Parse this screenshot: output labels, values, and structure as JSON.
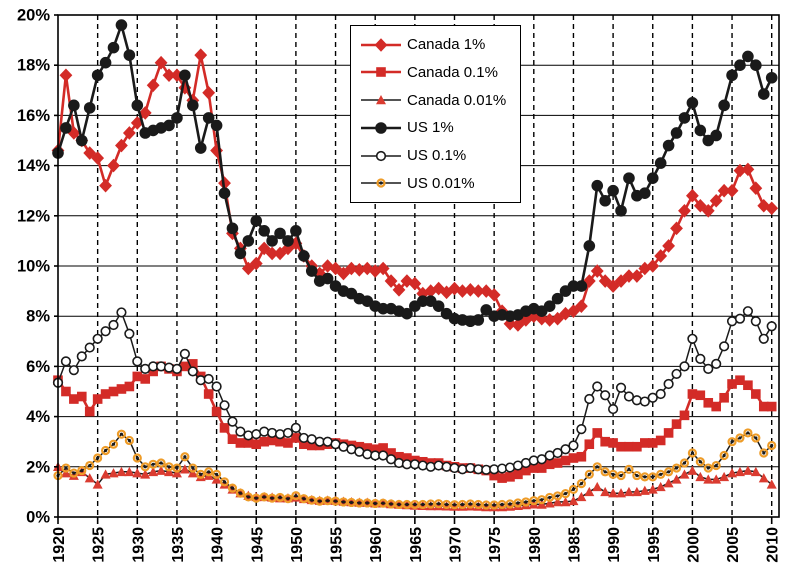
{
  "figure": {
    "title": "",
    "y_axis": {
      "tick_labels": [
        "0%",
        "2%",
        "4%",
        "6%",
        "8%",
        "10%",
        "12%",
        "14%",
        "16%",
        "18%",
        "20%"
      ],
      "min": 0,
      "max": 20,
      "step": 2
    },
    "x_axis": {
      "tick_labels": [
        "1920",
        "1925",
        "1930",
        "1935",
        "1940",
        "1945",
        "1950",
        "1955",
        "1960",
        "1965",
        "1970",
        "1975",
        "1980",
        "1985",
        "1990",
        "1995",
        "2000",
        "2005",
        "2010"
      ],
      "min": 1920,
      "max": 2010,
      "step": 5
    },
    "colors": {
      "red": "#d32b27",
      "black": "#1a1a1a",
      "orange": "#ee9c28",
      "grid": "#000000",
      "background": "#ffffff"
    }
  },
  "chart_data": {
    "type": "line",
    "title": "",
    "xlabel": "",
    "ylabel": "",
    "ylim": [
      0,
      20
    ],
    "xlim": [
      1920,
      2010
    ],
    "grid": {
      "horizontal": "solid",
      "vertical": "dashed"
    },
    "legend_position": "top-center",
    "x_start": 1920,
    "x_step": 1,
    "series": [
      {
        "name": "Canada 1%",
        "line_color": "#d32b27",
        "line_width": 2.6,
        "marker": "diamond",
        "marker_color": "#d32b27",
        "marker_size": 6.4,
        "values": [
          14.6,
          17.6,
          15.3,
          15.0,
          14.5,
          14.3,
          13.2,
          14.0,
          14.8,
          15.3,
          15.7,
          16.1,
          17.2,
          18.1,
          17.6,
          17.6,
          17.1,
          16.6,
          18.4,
          16.9,
          14.6,
          13.3,
          11.3,
          10.7,
          9.9,
          10.1,
          10.7,
          10.5,
          10.5,
          10.7,
          10.9,
          10.4,
          10.0,
          9.7,
          10.0,
          9.9,
          9.7,
          9.9,
          9.85,
          9.9,
          9.8,
          9.9,
          9.4,
          9.05,
          9.4,
          9.3,
          8.9,
          9.0,
          9.1,
          8.95,
          9.1,
          9.0,
          9.05,
          9.0,
          9.0,
          8.85,
          8.2,
          7.7,
          7.65,
          7.85,
          8.0,
          7.9,
          7.85,
          7.9,
          8.1,
          8.2,
          8.4,
          9.4,
          9.8,
          9.4,
          9.2,
          9.4,
          9.6,
          9.6,
          9.9,
          10.0,
          10.4,
          10.8,
          11.5,
          12.2,
          12.8,
          12.4,
          12.2,
          12.6,
          13.0,
          13.0,
          13.8,
          13.85,
          13.1,
          12.4,
          12.3
        ]
      },
      {
        "name": "Canada 0.1%",
        "line_color": "#d32b27",
        "line_width": 2.6,
        "marker": "square",
        "marker_color": "#d32b27",
        "marker_size": 4.8,
        "values": [
          5.45,
          5.0,
          4.7,
          4.8,
          4.2,
          4.7,
          4.9,
          5.0,
          5.1,
          5.2,
          5.6,
          5.5,
          5.8,
          6.0,
          5.9,
          5.8,
          6.0,
          6.1,
          5.6,
          4.9,
          4.2,
          3.55,
          3.1,
          2.95,
          2.95,
          2.9,
          3.0,
          3.05,
          3.0,
          2.95,
          3.15,
          2.9,
          2.85,
          2.85,
          2.9,
          2.95,
          2.9,
          2.85,
          2.8,
          2.75,
          2.7,
          2.75,
          2.55,
          2.4,
          2.35,
          2.25,
          2.2,
          2.15,
          2.15,
          2.05,
          2.0,
          1.95,
          1.95,
          1.9,
          1.85,
          1.65,
          1.55,
          1.6,
          1.7,
          1.85,
          1.95,
          1.95,
          2.1,
          2.15,
          2.25,
          2.35,
          2.4,
          2.9,
          3.35,
          3.0,
          2.95,
          2.8,
          2.8,
          2.8,
          2.95,
          2.95,
          3.05,
          3.35,
          3.7,
          4.05,
          4.9,
          4.85,
          4.55,
          4.4,
          4.75,
          5.3,
          5.45,
          5.25,
          4.9,
          4.4,
          4.4
        ]
      },
      {
        "name": "Canada 0.01%",
        "line_color": "#1a1a1a",
        "line_width": 1.5,
        "marker": "triangle",
        "marker_color": "#da3b30",
        "marker_size": 5.0,
        "values": [
          2.0,
          1.75,
          1.65,
          1.8,
          1.55,
          1.3,
          1.7,
          1.75,
          1.8,
          1.8,
          1.75,
          1.7,
          1.8,
          1.85,
          1.8,
          1.75,
          1.9,
          1.75,
          1.6,
          1.65,
          1.5,
          1.3,
          1.1,
          0.95,
          0.85,
          0.8,
          0.8,
          0.78,
          0.75,
          0.75,
          0.78,
          0.72,
          0.68,
          0.65,
          0.66,
          0.65,
          0.62,
          0.6,
          0.58,
          0.58,
          0.55,
          0.55,
          0.52,
          0.5,
          0.48,
          0.46,
          0.45,
          0.44,
          0.44,
          0.43,
          0.42,
          0.42,
          0.43,
          0.42,
          0.4,
          0.4,
          0.4,
          0.42,
          0.45,
          0.48,
          0.51,
          0.5,
          0.55,
          0.6,
          0.6,
          0.64,
          0.8,
          1.0,
          1.2,
          1.0,
          0.95,
          0.95,
          1.0,
          1.0,
          1.05,
          1.1,
          1.2,
          1.35,
          1.5,
          1.7,
          1.85,
          1.6,
          1.5,
          1.5,
          1.6,
          1.75,
          1.8,
          1.85,
          1.8,
          1.55,
          1.3
        ]
      },
      {
        "name": "US 1%",
        "line_color": "#1a1a1a",
        "line_width": 2.6,
        "marker": "circle",
        "marker_color": "#1a1a1a",
        "marker_size": 5.8,
        "values": [
          14.5,
          15.5,
          16.4,
          15.0,
          16.3,
          17.6,
          18.1,
          18.7,
          19.6,
          18.4,
          16.4,
          15.3,
          15.4,
          15.5,
          15.6,
          15.9,
          17.6,
          16.4,
          14.7,
          15.9,
          15.6,
          12.9,
          11.5,
          10.5,
          11.0,
          11.8,
          11.4,
          11.0,
          11.3,
          11.0,
          11.4,
          10.4,
          9.8,
          9.4,
          9.5,
          9.2,
          9.0,
          8.9,
          8.7,
          8.6,
          8.4,
          8.3,
          8.3,
          8.2,
          8.1,
          8.4,
          8.6,
          8.6,
          8.4,
          8.1,
          7.9,
          7.85,
          7.8,
          7.85,
          8.25,
          8.0,
          8.05,
          8.0,
          8.05,
          8.2,
          8.3,
          8.2,
          8.4,
          8.7,
          9.0,
          9.2,
          9.2,
          10.8,
          13.2,
          12.6,
          13.0,
          12.2,
          13.5,
          12.8,
          12.9,
          13.5,
          14.1,
          14.8,
          15.3,
          15.9,
          16.5,
          15.4,
          15.0,
          15.2,
          16.4,
          17.6,
          18.0,
          18.35,
          18.0,
          16.85,
          17.5
        ]
      },
      {
        "name": "US 0.1%",
        "line_color": "#1a1a1a",
        "line_width": 1.5,
        "marker": "circle_open",
        "marker_color": "#1a1a1a",
        "marker_size": 4.3,
        "values": [
          5.35,
          6.2,
          5.85,
          6.4,
          6.75,
          7.1,
          7.4,
          7.65,
          8.15,
          7.3,
          6.2,
          5.9,
          6.0,
          6.0,
          5.95,
          5.9,
          6.5,
          5.8,
          5.45,
          5.5,
          5.2,
          4.45,
          3.8,
          3.4,
          3.25,
          3.3,
          3.4,
          3.35,
          3.3,
          3.35,
          3.55,
          3.15,
          3.1,
          3.0,
          3.0,
          2.9,
          2.8,
          2.7,
          2.6,
          2.5,
          2.45,
          2.45,
          2.3,
          2.15,
          2.1,
          2.1,
          2.05,
          2.0,
          2.05,
          2.0,
          1.95,
          1.9,
          1.95,
          1.9,
          1.88,
          1.9,
          1.93,
          1.97,
          2.05,
          2.15,
          2.25,
          2.3,
          2.45,
          2.55,
          2.7,
          2.85,
          3.5,
          4.7,
          5.2,
          4.85,
          4.3,
          5.15,
          4.8,
          4.65,
          4.6,
          4.75,
          4.9,
          5.3,
          5.7,
          6.0,
          7.1,
          6.3,
          5.9,
          6.1,
          6.8,
          7.8,
          7.9,
          8.2,
          7.8,
          7.1,
          7.6
        ]
      },
      {
        "name": "US 0.01%",
        "line_color": "#1a1a1a",
        "line_width": 1.5,
        "marker": "ring_dot",
        "marker_color": "#ee9c28",
        "marker_size": 3.5,
        "values": [
          1.65,
          1.95,
          1.75,
          1.85,
          2.05,
          2.35,
          2.65,
          2.9,
          3.3,
          3.05,
          2.35,
          2.0,
          2.1,
          2.15,
          2.0,
          1.95,
          2.4,
          1.95,
          1.7,
          1.8,
          1.7,
          1.4,
          1.15,
          0.95,
          0.8,
          0.75,
          0.8,
          0.75,
          0.78,
          0.73,
          0.85,
          0.73,
          0.67,
          0.63,
          0.65,
          0.63,
          0.6,
          0.58,
          0.56,
          0.56,
          0.54,
          0.55,
          0.52,
          0.5,
          0.5,
          0.5,
          0.5,
          0.52,
          0.53,
          0.5,
          0.49,
          0.5,
          0.52,
          0.5,
          0.48,
          0.48,
          0.5,
          0.52,
          0.56,
          0.6,
          0.65,
          0.69,
          0.78,
          0.84,
          0.93,
          1.1,
          1.33,
          1.7,
          2.0,
          1.8,
          1.7,
          1.65,
          1.9,
          1.65,
          1.6,
          1.6,
          1.7,
          1.8,
          1.95,
          2.15,
          2.55,
          2.2,
          1.95,
          2.05,
          2.45,
          3.0,
          3.15,
          3.35,
          3.15,
          2.55,
          2.85
        ]
      }
    ],
    "draw_order": [
      2,
      5,
      1,
      4,
      0,
      3
    ]
  }
}
